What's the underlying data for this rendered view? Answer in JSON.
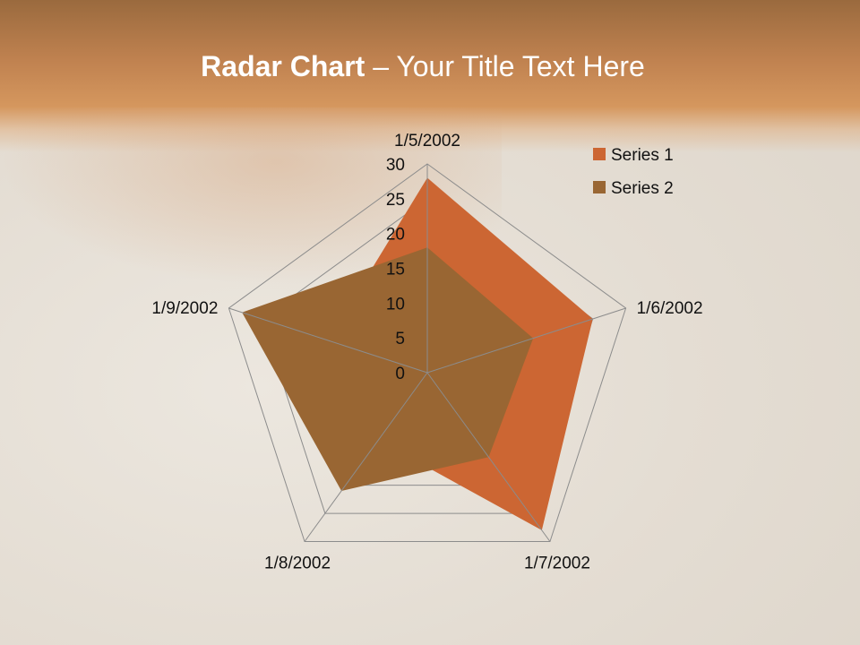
{
  "title": {
    "bold": "Radar Chart",
    "rest": " – Your Title Text Here"
  },
  "chart_data": {
    "type": "radar",
    "categories": [
      "1/5/2002",
      "1/6/2002",
      "1/7/2002",
      "1/8/2002",
      "1/9/2002"
    ],
    "series": [
      {
        "name": "Series 1",
        "values": [
          28,
          25,
          28,
          12,
          15
        ],
        "color": "#cc6633"
      },
      {
        "name": "Series 2",
        "values": [
          18,
          16,
          15,
          21,
          28
        ],
        "color": "#996633"
      }
    ],
    "radial_ticks": [
      "0",
      "5",
      "10",
      "15",
      "20",
      "25",
      "30"
    ],
    "rlim": [
      0,
      30
    ],
    "grid": true,
    "legend": "top-right"
  }
}
